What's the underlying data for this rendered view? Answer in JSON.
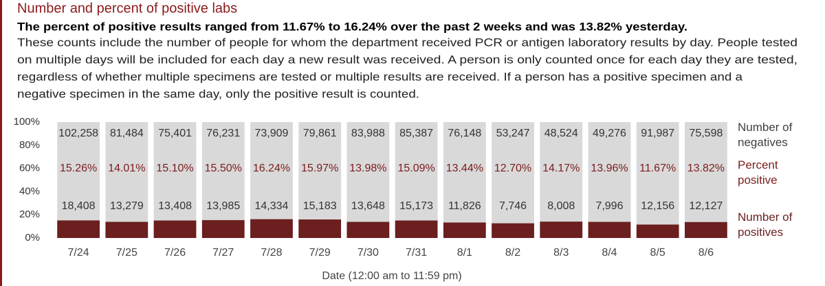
{
  "title": "Number and percent of positive labs",
  "subtitle": "The percent of positive results ranged from 11.67% to 16.24% over the past 2 weeks and was 13.82% yesterday.",
  "description": [
    "These counts include the number of people for whom the department received PCR or antigen laboratory results by day. People tested",
    "on multiple days will be included for each day a new result was received. A person is only counted once for each day they are tested,",
    "regardless of whether multiple specimens are tested or multiple results are received. If a person has a positive specimen and a",
    "negative specimen in the same day, only the positive result is counted."
  ],
  "chart_data": {
    "type": "bar",
    "stacked": "percent",
    "xlabel": "Date (12:00 am to 11:59 pm)",
    "categories": [
      "7/24",
      "7/25",
      "7/26",
      "7/27",
      "7/28",
      "7/29",
      "7/30",
      "7/31",
      "8/1",
      "8/2",
      "8/3",
      "8/4",
      "8/5",
      "8/6"
    ],
    "series": [
      {
        "name": "Number of negatives",
        "kind": "bar",
        "color": "#d9d9d9",
        "values": [
          102258,
          81484,
          75401,
          76231,
          73909,
          79861,
          83988,
          85387,
          76148,
          53247,
          48524,
          49276,
          91987,
          75598
        ],
        "value_labels": [
          "102,258",
          "81,484",
          "75,401",
          "76,231",
          "73,909",
          "79,861",
          "83,988",
          "85,387",
          "76,148",
          "53,247",
          "48,524",
          "49,276",
          "91,987",
          "75,598"
        ]
      },
      {
        "name": "Percent positive",
        "kind": "label",
        "color": "#7b1c1c",
        "values": [
          15.26,
          14.01,
          15.1,
          15.5,
          16.24,
          15.97,
          13.98,
          15.09,
          13.44,
          12.7,
          14.17,
          13.96,
          11.67,
          13.82
        ],
        "value_labels": [
          "15.26%",
          "14.01%",
          "15.10%",
          "15.50%",
          "16.24%",
          "15.97%",
          "13.98%",
          "15.09%",
          "13.44%",
          "12.70%",
          "14.17%",
          "13.96%",
          "11.67%",
          "13.82%"
        ]
      },
      {
        "name": "Number of positives",
        "kind": "bar",
        "color": "#6b1f1f",
        "values": [
          18408,
          13279,
          13408,
          13985,
          14334,
          15183,
          13648,
          15173,
          11826,
          7746,
          8008,
          7996,
          12156,
          12127
        ],
        "value_labels": [
          "18,408",
          "13,279",
          "13,408",
          "13,985",
          "14,334",
          "15,183",
          "13,648",
          "15,173",
          "11,826",
          "7,746",
          "8,008",
          "7,996",
          "12,156",
          "12,127"
        ]
      }
    ],
    "ylim": [
      0,
      100
    ],
    "yticks": [
      {
        "value": 0,
        "label": "0%"
      },
      {
        "value": 20,
        "label": "20%"
      },
      {
        "value": 40,
        "label": "40%"
      },
      {
        "value": 60,
        "label": "60%"
      },
      {
        "value": 80,
        "label": "80%"
      },
      {
        "value": 100,
        "label": "100%"
      }
    ]
  }
}
